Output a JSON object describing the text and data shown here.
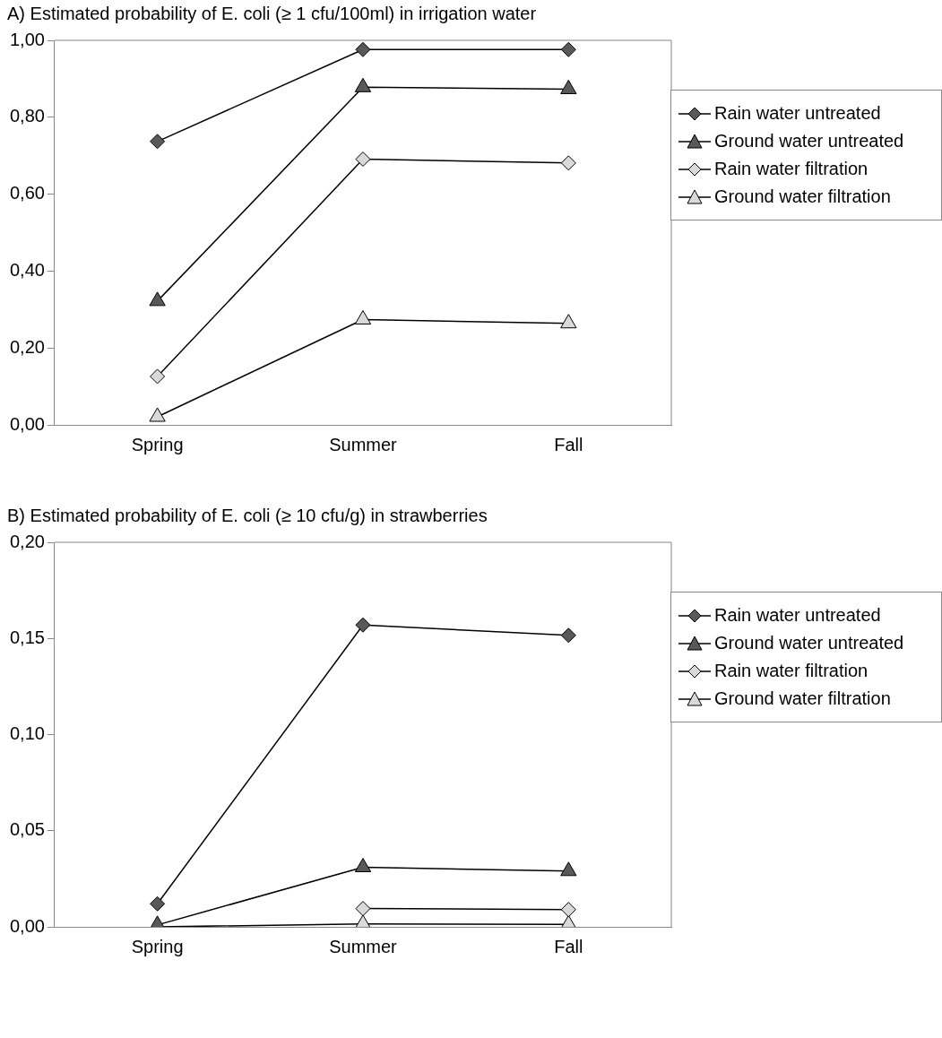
{
  "chart_data": [
    {
      "type": "line",
      "title": "A) Estimated probability of E. coli (≥ 1 cfu/100ml) in irrigation water",
      "categories": [
        "Spring",
        "Summer",
        "Fall"
      ],
      "ylim": [
        0,
        1
      ],
      "yticks": [
        {
          "value": 0,
          "label": "0,00"
        },
        {
          "value": 0.2,
          "label": "0,20"
        },
        {
          "value": 0.4,
          "label": "0,40"
        },
        {
          "value": 0.6,
          "label": "0,60"
        },
        {
          "value": 0.8,
          "label": "0,80"
        },
        {
          "value": 1,
          "label": "1,00"
        }
      ],
      "grid": false,
      "legend": "right",
      "line_style": "solid",
      "series": [
        {
          "name": "Rain water untreated",
          "color": "#595959",
          "marker": "diamond",
          "values": [
            0.737,
            0.976,
            0.976
          ]
        },
        {
          "name": "Ground water untreated",
          "color": "#595959",
          "marker": "triangle",
          "values": [
            0.322,
            0.878,
            0.873
          ]
        },
        {
          "name": "Rain water filtration",
          "color": "#d9d9d9",
          "marker": "diamond",
          "values": [
            0.126,
            0.691,
            0.681
          ]
        },
        {
          "name": "Ground water filtration",
          "color": "#d9d9d9",
          "marker": "triangle",
          "values": [
            0.021,
            0.274,
            0.264
          ]
        }
      ]
    },
    {
      "type": "line",
      "title": "B) Estimated probability of E. coli (≥ 10 cfu/g) in strawberries",
      "categories": [
        "Spring",
        "Summer",
        "Fall"
      ],
      "ylim": [
        0,
        0.2
      ],
      "yticks": [
        {
          "value": 0,
          "label": "0,00"
        },
        {
          "value": 0.05,
          "label": "0,05"
        },
        {
          "value": 0.1,
          "label": "0,10"
        },
        {
          "value": 0.15,
          "label": "0,15"
        },
        {
          "value": 0.2,
          "label": "0,20"
        }
      ],
      "grid": false,
      "legend": "right",
      "line_style": "solid",
      "series": [
        {
          "name": "Rain water untreated",
          "color": "#595959",
          "marker": "diamond",
          "values": [
            0.012,
            0.157,
            0.1516
          ]
        },
        {
          "name": "Ground water untreated",
          "color": "#595959",
          "marker": "triangle",
          "values": [
            0.001,
            0.031,
            0.029
          ]
        },
        {
          "name": "Rain water filtration",
          "color": "#d9d9d9",
          "marker": "diamond",
          "values": [
            null,
            0.0095,
            0.009
          ]
        },
        {
          "name": "Ground water filtration",
          "color": "#d9d9d9",
          "marker": "triangle",
          "values": [
            0,
            0.0015,
            0.0013
          ]
        }
      ]
    }
  ]
}
